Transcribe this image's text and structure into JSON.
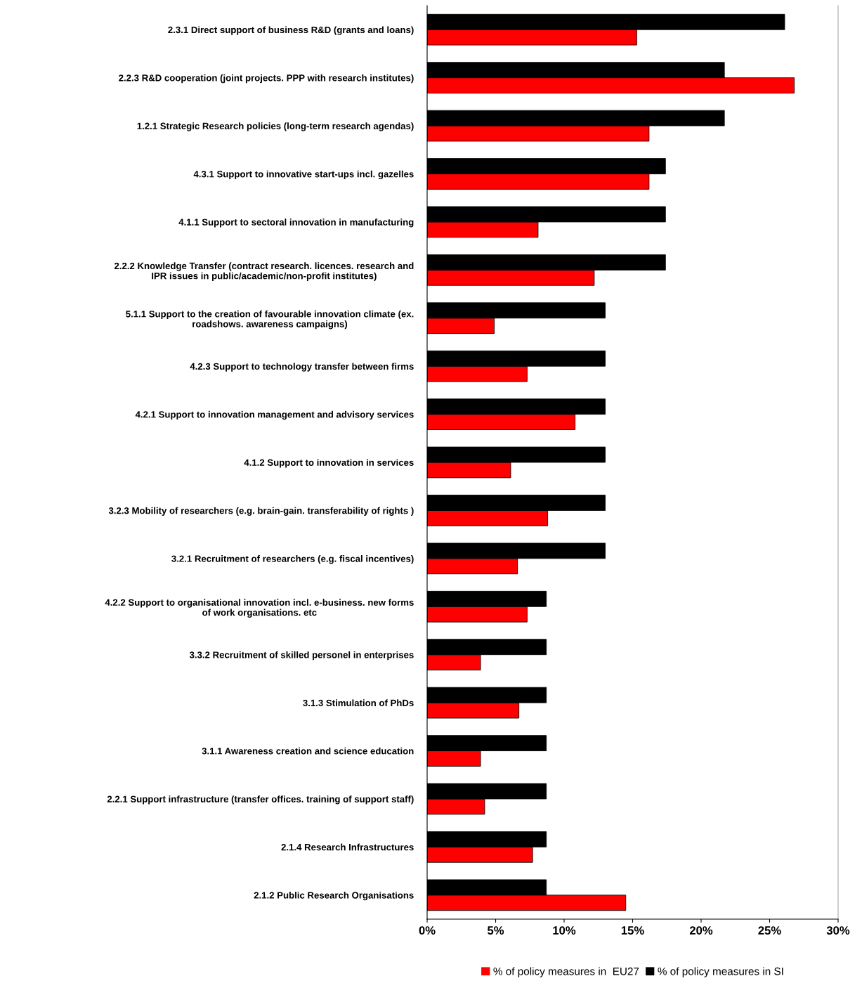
{
  "chart_data": {
    "type": "bar",
    "orientation": "horizontal",
    "categories": [
      "2.3.1 Direct support of business R&D (grants and loans)",
      "2.2.3 R&D cooperation (joint projects. PPP with research institutes)",
      "1.2.1 Strategic Research policies (long-term research agendas)",
      "4.3.1 Support to innovative start-ups incl. gazelles",
      "4.1.1 Support to sectoral innovation in manufacturing",
      "2.2.2 Knowledge Transfer (contract research. licences. research and\nIPR issues in public/academic/non-profit institutes)",
      "5.1.1 Support to the creation of favourable innovation climate (ex.\nroadshows. awareness campaigns)",
      "4.2.3 Support to technology transfer between firms",
      "4.2.1 Support to innovation management and advisory services",
      "4.1.2 Support to innovation in services",
      "3.2.3 Mobility of researchers (e.g. brain-gain. transferability of rights )",
      "3.2.1 Recruitment of researchers (e.g. fiscal incentives)",
      "4.2.2 Support to organisational innovation incl. e-business. new forms\nof work organisations. etc",
      "3.3.2 Recruitment of skilled personel in enterprises",
      "3.1.3 Stimulation of PhDs",
      "3.1.1 Awareness creation and science education",
      "2.2.1 Support infrastructure (transfer offices. training of support staff)",
      "2.1.4 Research Infrastructures",
      "2.1.2 Public Research Organisations"
    ],
    "series": [
      {
        "name": "% of policy measures in  EU27",
        "color": "#ff0000",
        "values": [
          15.3,
          26.8,
          16.2,
          16.2,
          8.1,
          12.2,
          4.9,
          7.3,
          10.8,
          6.1,
          8.8,
          6.6,
          7.3,
          3.9,
          6.7,
          3.9,
          4.2,
          7.7,
          14.5
        ]
      },
      {
        "name": "% of policy measures in SI",
        "color": "#000000",
        "values": [
          26.1,
          21.7,
          21.7,
          17.4,
          17.4,
          17.4,
          13.0,
          13.0,
          13.0,
          13.0,
          13.0,
          13.0,
          8.7,
          8.7,
          8.7,
          8.7,
          8.7,
          8.7,
          8.7
        ]
      }
    ],
    "xlim": [
      0,
      30
    ],
    "xticks": [
      {
        "value": 0,
        "label": "0%"
      },
      {
        "value": 5,
        "label": "5%"
      },
      {
        "value": 10,
        "label": "10%"
      },
      {
        "value": 15,
        "label": "15%"
      },
      {
        "value": 20,
        "label": "20%"
      },
      {
        "value": 25,
        "label": "25%"
      },
      {
        "value": 30,
        "label": "30%"
      }
    ],
    "grid": false,
    "legend": "bottom"
  }
}
